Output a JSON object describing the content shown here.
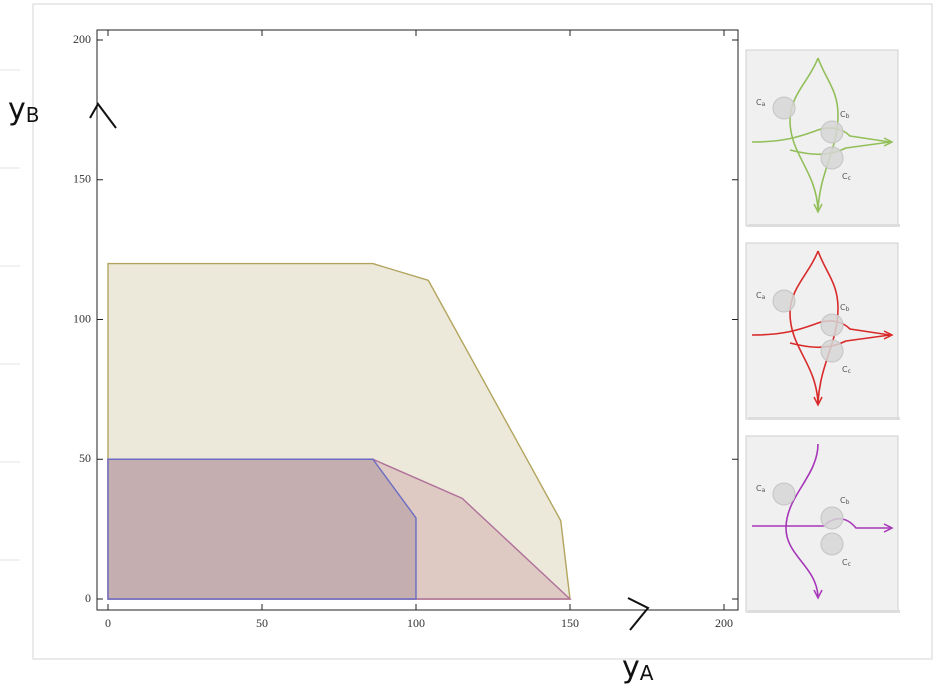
{
  "chart_data": {
    "type": "polygon",
    "xlim": [
      0,
      200
    ],
    "ylim": [
      0,
      200
    ],
    "xticks": [
      0,
      50,
      100,
      150,
      200
    ],
    "yticks": [
      0,
      50,
      100,
      150,
      200
    ],
    "xlabel": {
      "base": "y",
      "sub": "A"
    },
    "ylabel": {
      "base": "y",
      "sub": "B"
    },
    "series": [
      {
        "color": "#b3a45e",
        "fill": "#e9e5d4",
        "x": [
          0,
          0,
          86,
          104,
          147,
          150
        ],
        "y": [
          0,
          120,
          120,
          114,
          28,
          0
        ]
      },
      {
        "color": "#b0709a",
        "fill": "#dcc4bd",
        "x": [
          0,
          0,
          86,
          115,
          150
        ],
        "y": [
          0,
          50,
          50,
          36,
          0
        ]
      },
      {
        "color": "#6c6cc4",
        "fill": "#c0a9ab",
        "x": [
          0,
          0,
          86,
          100,
          100
        ],
        "y": [
          0,
          50,
          50,
          29,
          0
        ]
      }
    ],
    "insets": [
      {
        "color": "#92bf5a",
        "labels": [
          {
            "base": "C",
            "sub": "a"
          },
          {
            "base": "C",
            "sub": "b"
          },
          {
            "base": "C",
            "sub": "c"
          }
        ]
      },
      {
        "color": "#d92a2a",
        "labels": [
          {
            "base": "C",
            "sub": "a"
          },
          {
            "base": "C",
            "sub": "b"
          },
          {
            "base": "C",
            "sub": "c"
          }
        ]
      },
      {
        "color": "#a637b8",
        "labels": [
          {
            "base": "C",
            "sub": "a"
          },
          {
            "base": "C",
            "sub": "b"
          },
          {
            "base": "C",
            "sub": "c"
          }
        ]
      }
    ]
  }
}
